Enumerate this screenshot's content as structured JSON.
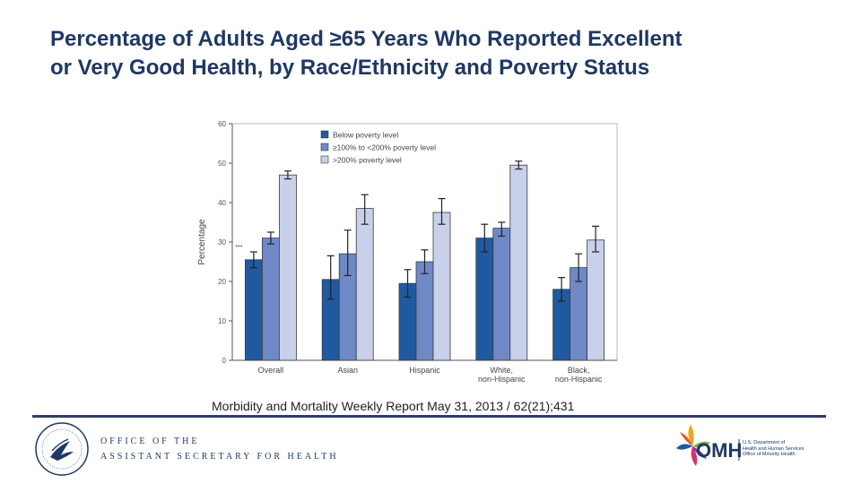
{
  "slide": {
    "title_line1": "Percentage of Adults Aged ≥65 Years Who Reported Excellent",
    "title_line2": "or Very Good Health, by Race/Ethnicity and Poverty Status",
    "citation": "Morbidity and Mortality Weekly Report May 31, 2013 / 62(21);431"
  },
  "footer": {
    "office_line1": "OFFICE OF THE",
    "office_line2": "ASSISTANT SECRETARY FOR HEALTH",
    "omh_logo_text": "OMH",
    "omh_line1": "U.S. Department of",
    "omh_line2": "Health and Human Services",
    "omh_line3": "Office of Minority Health"
  },
  "colors": {
    "title": "#1f3864",
    "series_below": "#1f5aa0",
    "series_mid": "#6f89c6",
    "series_high": "#c8d0ea"
  },
  "chart_data": {
    "type": "bar",
    "title": "",
    "xlabel": "",
    "ylabel": "Percentage",
    "ylim": [
      0,
      60
    ],
    "yticks": [
      0,
      10,
      20,
      30,
      40,
      50,
      60
    ],
    "grid": false,
    "legend_position": "top-left",
    "categories": [
      [
        "Overall"
      ],
      [
        "Asian"
      ],
      [
        "Hispanic"
      ],
      [
        "White,",
        "non-Hispanic"
      ],
      [
        "Black,",
        "non-Hispanic"
      ]
    ],
    "series": [
      {
        "name": "Below poverty level",
        "color": "#1f5aa0",
        "values": [
          25.5,
          20.5,
          19.5,
          31,
          18
        ],
        "ci_low": [
          23.5,
          15.5,
          16,
          27.5,
          15
        ],
        "ci_high": [
          27.5,
          26.5,
          23,
          34.5,
          21
        ]
      },
      {
        "name": "≥100% to <200% poverty level",
        "color": "#6f89c6",
        "values": [
          31,
          27,
          25,
          33.5,
          23.5
        ],
        "ci_low": [
          29.5,
          21.5,
          22,
          31.5,
          20
        ],
        "ci_high": [
          32.5,
          33,
          28,
          35,
          27
        ]
      },
      {
        "name": ">200% poverty level",
        "color": "#c8d0ea",
        "values": [
          47,
          38.5,
          37.5,
          49.5,
          30.5
        ],
        "ci_low": [
          46,
          34.5,
          34.5,
          48.5,
          27.5
        ],
        "ci_high": [
          48,
          42,
          41,
          50.5,
          34
        ]
      }
    ],
    "annotation": "***"
  }
}
